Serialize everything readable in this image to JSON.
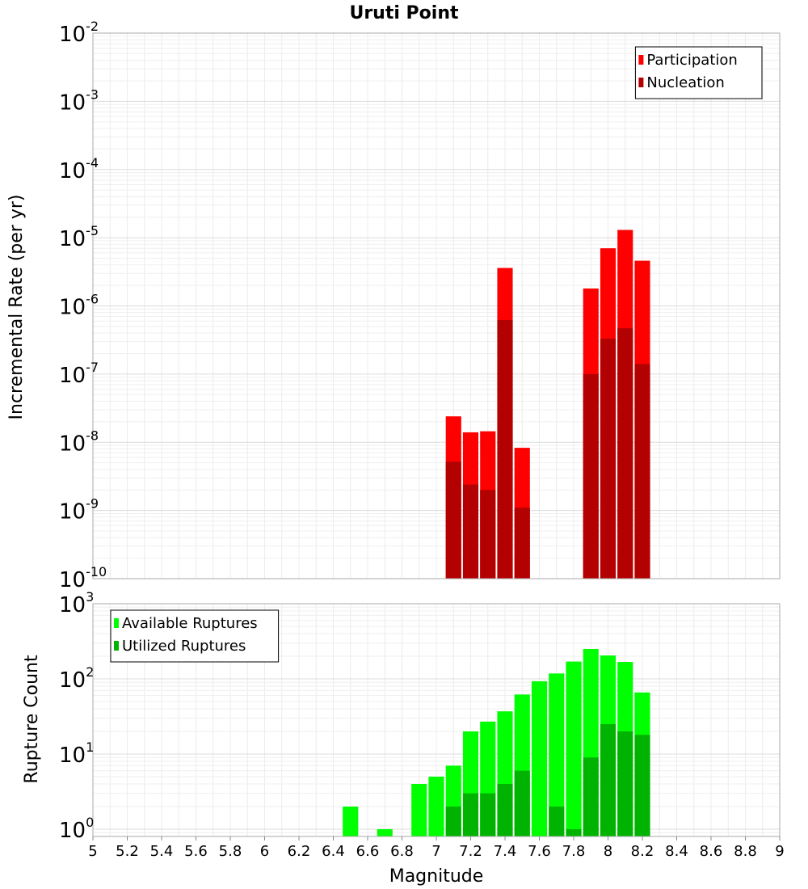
{
  "chart_data": [
    {
      "type": "bar",
      "title": "Uruti Point",
      "xlabel": "",
      "ylabel": "Incremental Rate (per yr)",
      "yscale": "log",
      "ylim": [
        1e-10,
        0.01
      ],
      "xlim": [
        5,
        9
      ],
      "y_tick_base": "10",
      "y_tick_exponents": [
        "-10",
        "-9",
        "-8",
        "-7",
        "-6",
        "-5",
        "-4",
        "-3",
        "-2"
      ],
      "grid": true,
      "legend_position": "top-right",
      "x": [
        7.1,
        7.2,
        7.3,
        7.4,
        7.5,
        7.9,
        8.0,
        8.1,
        8.2
      ],
      "series": [
        {
          "name": "Participation",
          "color": "#ff0000",
          "values": [
            2.4e-08,
            1.4e-08,
            1.45e-08,
            3.6e-06,
            8.3e-09,
            1.8e-06,
            7e-06,
            1.3e-05,
            4.6e-06
          ]
        },
        {
          "name": "Nucleation",
          "color": "#b30000",
          "values": [
            5.2e-09,
            2.4e-09,
            2e-09,
            6.2e-07,
            1.1e-09,
            1e-07,
            3.3e-07,
            4.7e-07,
            1.4e-07
          ]
        }
      ]
    },
    {
      "type": "bar",
      "title": "",
      "xlabel": "Magnitude",
      "ylabel": "Rupture Count",
      "yscale": "log",
      "ylim": [
        0.8,
        1000
      ],
      "xlim": [
        5,
        9
      ],
      "y_tick_base": "10",
      "y_tick_exponents": [
        "0",
        "1",
        "2",
        "3"
      ],
      "x_tick_labels": [
        "5",
        "5.2",
        "5.4",
        "5.6",
        "5.8",
        "6",
        "6.2",
        "6.4",
        "6.6",
        "6.8",
        "7",
        "7.2",
        "7.4",
        "7.6",
        "7.8",
        "8",
        "8.2",
        "8.4",
        "8.6",
        "8.8",
        "9"
      ],
      "grid": true,
      "legend_position": "top-left",
      "x": [
        6.5,
        6.7,
        6.9,
        7.0,
        7.1,
        7.2,
        7.3,
        7.4,
        7.5,
        7.6,
        7.7,
        7.8,
        7.9,
        8.0,
        8.1,
        8.2
      ],
      "series": [
        {
          "name": "Available Ruptures",
          "color": "#00ff00",
          "values": [
            2,
            1,
            4,
            5,
            7,
            20,
            27,
            37,
            62,
            93,
            118,
            170,
            250,
            205,
            168,
            66
          ]
        },
        {
          "name": "Utilized Ruptures",
          "color": "#00b300",
          "values": [
            0,
            0,
            0,
            0,
            2,
            3,
            3,
            4,
            6,
            0,
            2,
            1,
            9,
            25,
            20,
            18
          ]
        }
      ]
    }
  ]
}
